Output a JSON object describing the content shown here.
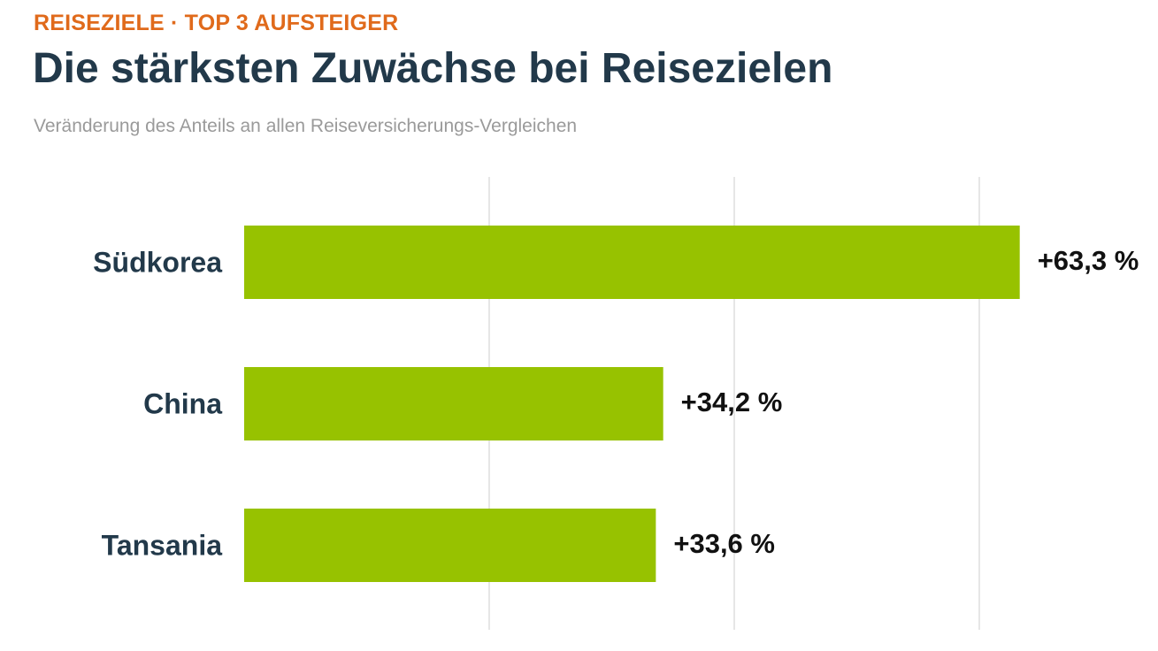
{
  "header": {
    "kicker": "REISEZIELE · TOP 3 AUFSTEIGER",
    "title": "Die stärksten Zuwächse bei Reisezielen",
    "subtitle": "Veränderung des Anteils an allen Reiseversicherungs-Vergleichen"
  },
  "chart_data": {
    "type": "bar",
    "orientation": "horizontal",
    "categories": [
      "Südkorea",
      "China",
      "Tansania"
    ],
    "values": [
      63.3,
      34.2,
      33.6
    ],
    "data_labels": [
      "+63,3 %",
      "+34,2 %",
      "+33,6 %"
    ],
    "xlim": [
      0,
      60
    ],
    "grid": true,
    "bar_color": "#97c200",
    "gridline_color": "#e6e6e6",
    "label_color": "#22394a"
  }
}
